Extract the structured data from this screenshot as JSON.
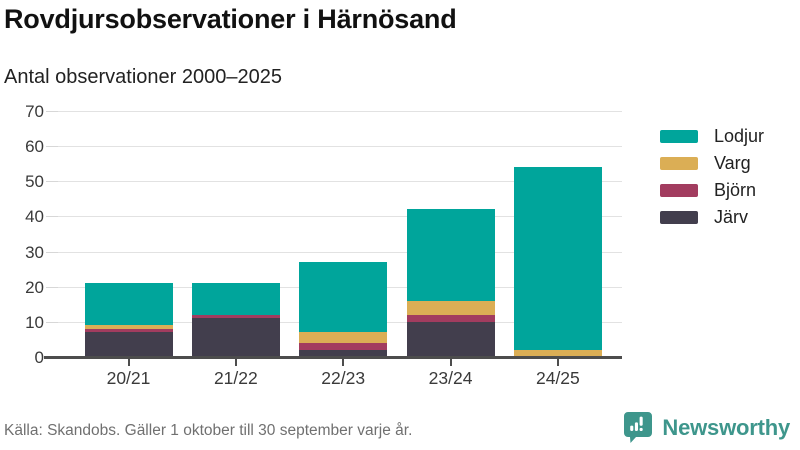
{
  "header": {
    "title": "Rovdjursobservationer i Härnösand",
    "subtitle": "Antal observationer 2000–2025"
  },
  "footer": {
    "source": "Källa: Skandobs. Gäller 1 oktober till 30 september varje år.",
    "brand": "Newsworthy"
  },
  "colors": {
    "lodjur": "#00a59b",
    "varg": "#dbae55",
    "bjorn": "#a23c5f",
    "jarv": "#423e4d",
    "grid": "#e2e2e2",
    "axis_line": "#4d4d4d",
    "axis_text": "#3a3a3a",
    "brand_teal": "#3e968c"
  },
  "chart_data": {
    "type": "bar",
    "stacked": true,
    "title": "Rovdjursobservationer i Härnösand",
    "subtitle": "Antal observationer 2000–2025",
    "categories": [
      "20/21",
      "21/22",
      "22/23",
      "23/24",
      "24/25"
    ],
    "series": [
      {
        "name": "Järv",
        "color": "#423e4d",
        "values": [
          7,
          11,
          2,
          10,
          0
        ]
      },
      {
        "name": "Björn",
        "color": "#a23c5f",
        "values": [
          1,
          1,
          2,
          2,
          0
        ]
      },
      {
        "name": "Varg",
        "color": "#dbae55",
        "values": [
          1,
          0,
          3,
          4,
          2
        ]
      },
      {
        "name": "Lodjur",
        "color": "#00a59b",
        "values": [
          12,
          9,
          20,
          26,
          52
        ]
      }
    ],
    "totals": [
      21,
      21,
      27,
      42,
      54
    ],
    "ylim": [
      0,
      70
    ],
    "yticks": [
      0,
      10,
      20,
      30,
      40,
      50,
      60,
      70
    ],
    "xlabel": "",
    "ylabel": "",
    "grid": "horizontal",
    "legend_position": "right",
    "legend_order_top_to_bottom": [
      "Lodjur",
      "Varg",
      "Björn",
      "Järv"
    ]
  }
}
